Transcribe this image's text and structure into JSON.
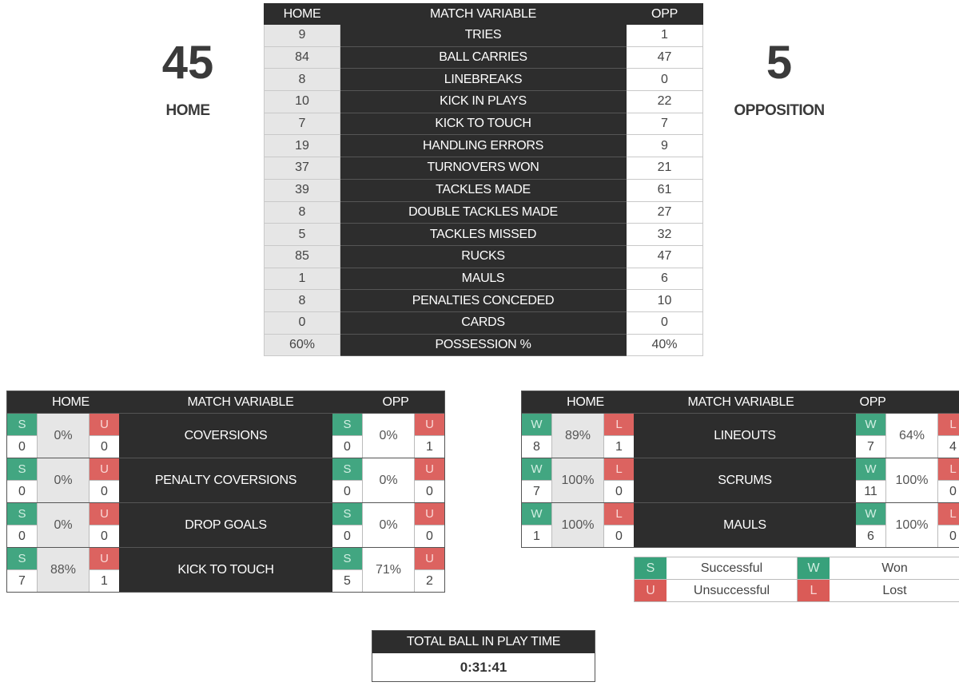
{
  "score": {
    "home": {
      "value": "45",
      "label": "HOME"
    },
    "opp": {
      "value": "5",
      "label": "OPPOSITION"
    }
  },
  "colors": {
    "success": "#2e9d74",
    "fail": "#d9534f",
    "dark": "#2d2d2d"
  },
  "main_table": {
    "headers": {
      "home": "HOME",
      "variable": "MATCH VARIABLE",
      "opp": "OPP"
    },
    "rows": [
      {
        "home": "9",
        "variable": "TRIES",
        "opp": "1"
      },
      {
        "home": "84",
        "variable": "BALL CARRIES",
        "opp": "47"
      },
      {
        "home": "8",
        "variable": "LINEBREAKS",
        "opp": "0"
      },
      {
        "home": "10",
        "variable": "KICK IN PLAYS",
        "opp": "22"
      },
      {
        "home": "7",
        "variable": "KICK TO TOUCH",
        "opp": "7"
      },
      {
        "home": "19",
        "variable": "HANDLING ERRORS",
        "opp": "9"
      },
      {
        "home": "37",
        "variable": "TURNOVERS WON",
        "opp": "21"
      },
      {
        "home": "39",
        "variable": "TACKLES MADE",
        "opp": "61"
      },
      {
        "home": "8",
        "variable": "DOUBLE TACKLES MADE",
        "opp": "27"
      },
      {
        "home": "5",
        "variable": "TACKLES MISSED",
        "opp": "32"
      },
      {
        "home": "85",
        "variable": "RUCKS",
        "opp": "47"
      },
      {
        "home": "1",
        "variable": "MAULS",
        "opp": "6"
      },
      {
        "home": "8",
        "variable": "PENALTIES CONCEDED",
        "opp": "10"
      },
      {
        "home": "0",
        "variable": "CARDS",
        "opp": "0"
      },
      {
        "home": "60%",
        "variable": "POSSESSION %",
        "opp": "40%"
      }
    ]
  },
  "kicking": {
    "headers": {
      "home": "HOME",
      "variable": "MATCH VARIABLE",
      "opp": "OPP"
    },
    "good_tag": "S",
    "bad_tag": "U",
    "rows": [
      {
        "variable": "COVERSIONS",
        "home": {
          "s": "0",
          "pct": "0%",
          "u": "0"
        },
        "opp": {
          "s": "0",
          "pct": "0%",
          "u": "1"
        }
      },
      {
        "variable": "PENALTY COVERSIONS",
        "home": {
          "s": "0",
          "pct": "0%",
          "u": "0"
        },
        "opp": {
          "s": "0",
          "pct": "0%",
          "u": "0"
        }
      },
      {
        "variable": "DROP GOALS",
        "home": {
          "s": "0",
          "pct": "0%",
          "u": "0"
        },
        "opp": {
          "s": "0",
          "pct": "0%",
          "u": "0"
        }
      },
      {
        "variable": "KICK TO TOUCH",
        "home": {
          "s": "7",
          "pct": "88%",
          "u": "1"
        },
        "opp": {
          "s": "5",
          "pct": "71%",
          "u": "2"
        }
      }
    ]
  },
  "setpiece": {
    "headers": {
      "home": "HOME",
      "variable": "MATCH VARIABLE",
      "opp": "OPP"
    },
    "good_tag": "W",
    "bad_tag": "L",
    "rows": [
      {
        "variable": "LINEOUTS",
        "home": {
          "s": "8",
          "pct": "89%",
          "u": "1"
        },
        "opp": {
          "s": "7",
          "pct": "64%",
          "u": "4"
        }
      },
      {
        "variable": "SCRUMS",
        "home": {
          "s": "7",
          "pct": "100%",
          "u": "0"
        },
        "opp": {
          "s": "11",
          "pct": "100%",
          "u": "0"
        }
      },
      {
        "variable": "MAULS",
        "home": {
          "s": "1",
          "pct": "100%",
          "u": "0"
        },
        "opp": {
          "s": "6",
          "pct": "100%",
          "u": "0"
        }
      }
    ]
  },
  "legend": {
    "s_tag": "S",
    "s_text": "Successful",
    "w_tag": "W",
    "w_text": "Won",
    "u_tag": "U",
    "u_text": "Unsuccessful",
    "l_tag": "L",
    "l_text": "Lost"
  },
  "ball_in_play": {
    "title": "TOTAL BALL IN PLAY TIME",
    "value": "0:31:41"
  }
}
